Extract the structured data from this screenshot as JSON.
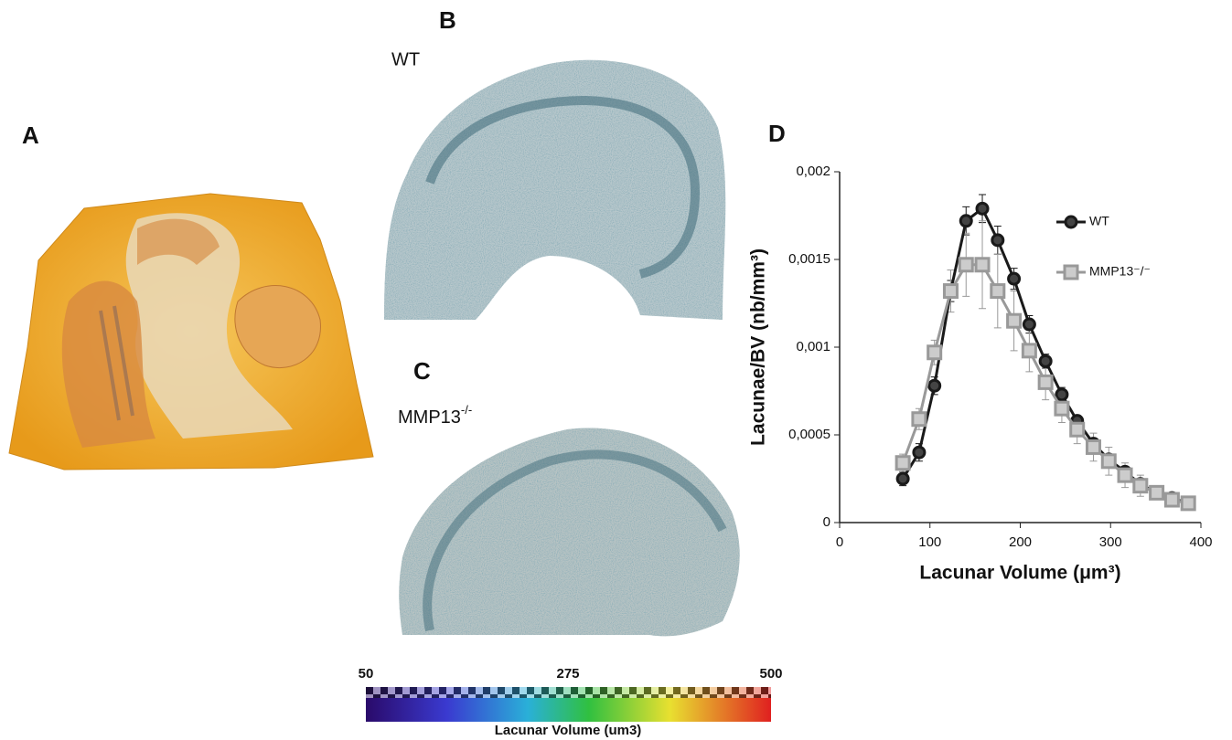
{
  "panels": {
    "a": "A",
    "b": "B",
    "c": "C",
    "d": "D",
    "wt": "WT",
    "mmp": {
      "text": "MMP13",
      "sup": "-/-"
    }
  },
  "colorbar": {
    "min": 50,
    "mid": 275,
    "max": 500,
    "label": "Lacunar Volume (um3)"
  },
  "chart_data": {
    "type": "line",
    "xlabel": "Lacunar Volume (μm³)",
    "ylabel": "Lacunae/BV (nb/mm³)",
    "x": [
      70,
      88,
      105,
      123,
      140,
      158,
      175,
      193,
      210,
      228,
      246,
      263,
      281,
      298,
      316,
      333,
      351,
      368,
      386
    ],
    "series": [
      {
        "name": "WT",
        "color": "#1a1a1a",
        "marker": "circle",
        "values": [
          0.00025,
          0.0004,
          0.00078,
          0.00132,
          0.00172,
          0.00179,
          0.00161,
          0.00139,
          0.00113,
          0.00092,
          0.00073,
          0.00058,
          0.00045,
          0.00036,
          0.00029,
          0.00022,
          0.00017,
          0.00014,
          0.00011
        ],
        "errors": [
          4e-05,
          5e-05,
          5e-05,
          6e-05,
          8e-05,
          8e-05,
          8e-05,
          6e-05,
          5e-05,
          4e-05,
          4e-05,
          3e-05,
          3e-05,
          3e-05,
          2e-05,
          2e-05,
          2e-05,
          2e-05,
          1e-05
        ]
      },
      {
        "name": "MMP13⁻/⁻",
        "color": "#999999",
        "marker": "square",
        "values": [
          0.00034,
          0.00059,
          0.00097,
          0.00132,
          0.00147,
          0.00147,
          0.00132,
          0.00115,
          0.00098,
          0.0008,
          0.00065,
          0.00053,
          0.00043,
          0.00035,
          0.00027,
          0.00021,
          0.00017,
          0.00013,
          0.00011
        ],
        "errors": [
          5e-05,
          6e-05,
          7e-05,
          0.00012,
          0.00018,
          0.00025,
          0.00021,
          0.00017,
          0.00012,
          0.0001,
          8e-05,
          8e-05,
          8e-05,
          8e-05,
          7e-05,
          6e-05,
          4e-05,
          3e-05,
          3e-05
        ]
      }
    ],
    "xlim": [
      0,
      400
    ],
    "xticks": [
      0,
      100,
      200,
      300,
      400
    ],
    "ylim": [
      0,
      0.002
    ],
    "yticks": [
      0,
      {
        "value": 0.0005,
        "label": "0,0005"
      },
      {
        "value": 0.001,
        "label": "0,001"
      },
      {
        "value": 0.0015,
        "label": "0,0015"
      },
      {
        "value": 0.002,
        "label": "0,002"
      }
    ],
    "legend": "right",
    "grid": false
  }
}
